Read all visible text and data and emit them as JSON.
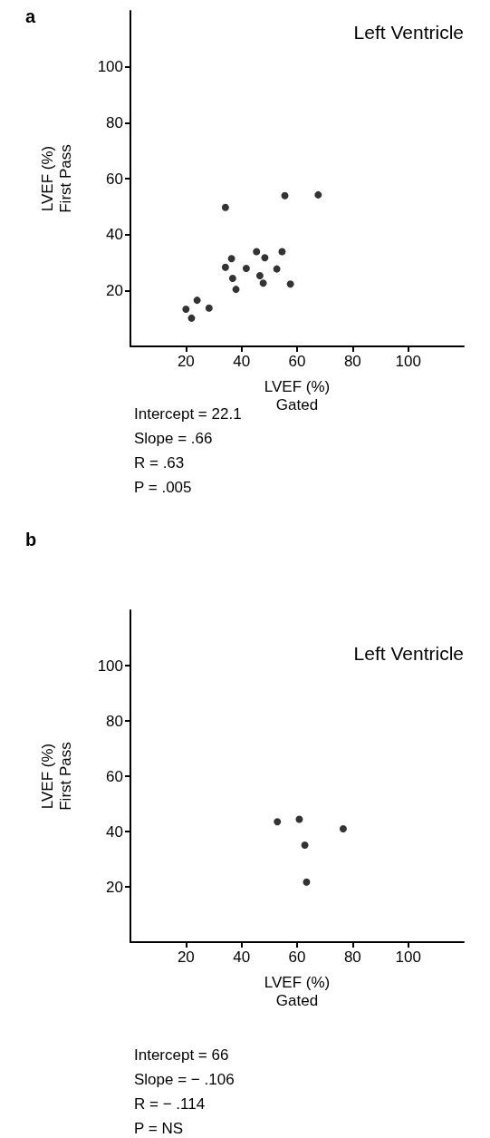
{
  "chart_data": [
    {
      "type": "scatter",
      "title": "Left Ventricle",
      "xlabel": "LVEF (%)\nGated",
      "ylabel": "LVEF (%)\nFirst Pass",
      "annotations": [
        "a",
        "Intercept = 22.1",
        "Slope = .66",
        "R = .63",
        "P = .005"
      ],
      "x": [
        20,
        22,
        24,
        28.3,
        34.2,
        34.2,
        36.4,
        36.8,
        38,
        41.7,
        45.4,
        46.6,
        47.8,
        48.4,
        52.7,
        54.6,
        55.6,
        57.6,
        67.6
      ],
      "values": [
        13.3,
        10.1,
        16.5,
        13.7,
        49.7,
        28.3,
        31.4,
        24.3,
        20.4,
        27.9,
        33.9,
        25.3,
        22.6,
        31.7,
        27.7,
        33.9,
        53.9,
        22.3,
        54.2
      ],
      "color": "#000000",
      "marker": "circle",
      "xlim": [
        0,
        120
      ],
      "ylim": [
        0,
        120
      ],
      "xticks": [
        20,
        40,
        60,
        80,
        100
      ],
      "yticks": [
        20,
        40,
        60,
        80,
        100
      ],
      "grid": false
    },
    {
      "type": "scatter",
      "title": "Left Ventricle",
      "xlabel": "LVEF (%)\nGated",
      "ylabel": "LVEF (%)\nFirst Pass",
      "annotations": [
        "b",
        "Intercept = 66",
        "Slope = − .106",
        "R = − .114",
        "P = NS"
      ],
      "x": [
        52.9,
        60.8,
        76.6,
        62.8,
        63.4
      ],
      "values": [
        43.5,
        44.4,
        41,
        35.1,
        21.7
      ],
      "color": "#000000",
      "marker": "circle",
      "xlim": [
        0,
        120
      ],
      "ylim": [
        0,
        120
      ],
      "xticks": [
        20,
        40,
        60,
        80,
        100
      ],
      "yticks": [
        20,
        40,
        60,
        80,
        100
      ],
      "grid": false
    }
  ]
}
